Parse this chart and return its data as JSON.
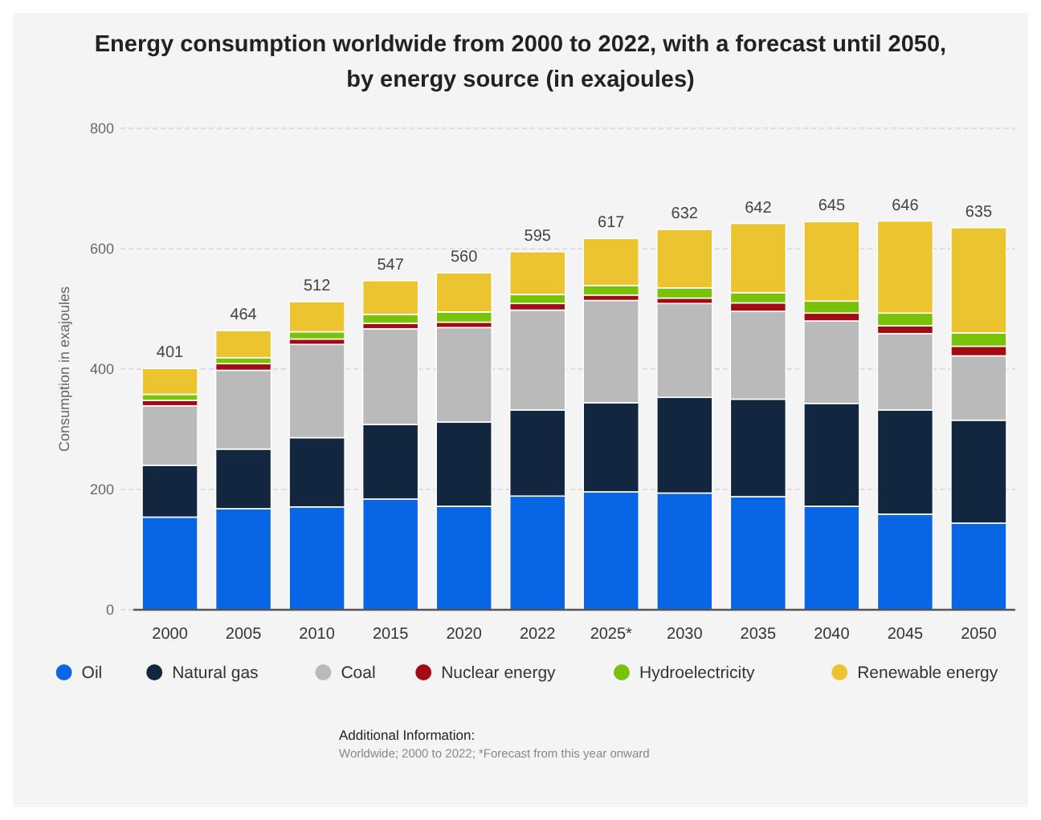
{
  "chart_data": {
    "type": "bar",
    "stacked": true,
    "title": "Energy consumption worldwide from 2000 to 2022, with a forecast until 2050, by energy source (in exajoules)",
    "ylabel": "Consumption in exajoules",
    "categories": [
      "2000",
      "2005",
      "2010",
      "2015",
      "2020",
      "2022",
      "2025*",
      "2030",
      "2035",
      "2040",
      "2045",
      "2050"
    ],
    "series": [
      {
        "name": "Oil",
        "color": "#0866e4",
        "values": [
          154,
          168,
          171,
          184,
          172,
          189,
          196,
          194,
          188,
          172,
          159,
          144
        ]
      },
      {
        "name": "Natural gas",
        "color": "#12263f",
        "values": [
          86,
          99,
          115,
          124,
          140,
          143,
          148,
          159,
          162,
          171,
          173,
          171
        ]
      },
      {
        "name": "Coal",
        "color": "#bababa",
        "values": [
          99,
          131,
          155,
          159,
          157,
          166,
          170,
          156,
          146,
          137,
          127,
          107
        ]
      },
      {
        "name": "Nuclear energy",
        "color": "#a30b12",
        "values": [
          9,
          11,
          9,
          9,
          9,
          11,
          9,
          9,
          14,
          13,
          13,
          16
        ]
      },
      {
        "name": "Hydroelectricity",
        "color": "#78c20a",
        "values": [
          10,
          10,
          12,
          15,
          17,
          15,
          16,
          17,
          17,
          20,
          21,
          22
        ]
      },
      {
        "name": "Renewable energy",
        "color": "#ebc42f",
        "values": [
          43,
          45,
          50,
          56,
          65,
          71,
          78,
          97,
          115,
          132,
          153,
          175
        ]
      }
    ],
    "totals": [
      "401",
      "464",
      "512",
      "547",
      "560",
      "595",
      "617",
      "632",
      "642",
      "645",
      "646",
      "635"
    ],
    "ylim": [
      0,
      800
    ],
    "yticks": [
      0,
      200,
      400,
      600,
      800
    ],
    "grid": "y",
    "legend": "bottom",
    "marker": "circle",
    "annotations": [
      "Additional Information:",
      "Worldwide; 2000 to 2022; *Forecast from this year onward"
    ]
  }
}
